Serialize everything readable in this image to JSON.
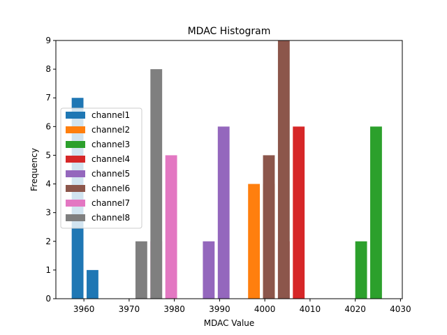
{
  "chart_data": {
    "type": "bar",
    "title": "MDAC Histogram",
    "xlabel": "MDAC Value",
    "ylabel": "Frequency",
    "xlim": [
      3953.8,
      4030.4
    ],
    "ylim": [
      0,
      9
    ],
    "xticks": [
      3960,
      3970,
      3980,
      3990,
      4000,
      4010,
      4020,
      4030
    ],
    "yticks": [
      0,
      1,
      2,
      3,
      4,
      5,
      6,
      7,
      8,
      9
    ],
    "bar_width": 2.6,
    "legend_position": "center-left",
    "series": [
      {
        "name": "channel1",
        "color": "#1f77b4",
        "bars": [
          {
            "x": 3958.6,
            "value": 7
          },
          {
            "x": 3961.9,
            "value": 1
          }
        ]
      },
      {
        "name": "channel2",
        "color": "#ff7f0e",
        "bars": [
          {
            "x": 3997.6,
            "value": 4
          },
          {
            "x": 4000.9,
            "value": 4
          }
        ]
      },
      {
        "name": "channel3",
        "color": "#2ca02c",
        "bars": [
          {
            "x": 4021.3,
            "value": 2
          },
          {
            "x": 4024.6,
            "value": 6
          }
        ]
      },
      {
        "name": "channel4",
        "color": "#d62728",
        "bars": [
          {
            "x": 4004.2,
            "value": 2
          },
          {
            "x": 4007.5,
            "value": 6
          }
        ]
      },
      {
        "name": "channel5",
        "color": "#9467bd",
        "bars": [
          {
            "x": 3987.6,
            "value": 2
          },
          {
            "x": 3990.9,
            "value": 6
          }
        ]
      },
      {
        "name": "channel6",
        "color": "#8c564b",
        "bars": [
          {
            "x": 4000.9,
            "value": 5
          },
          {
            "x": 4004.2,
            "value": 9
          }
        ]
      },
      {
        "name": "channel7",
        "color": "#e377c2",
        "bars": [
          {
            "x": 3976.0,
            "value": 2
          },
          {
            "x": 3979.3,
            "value": 5
          }
        ]
      },
      {
        "name": "channel8",
        "color": "#7f7f7f",
        "bars": [
          {
            "x": 3972.7,
            "value": 2
          },
          {
            "x": 3976.0,
            "value": 8
          }
        ]
      }
    ]
  }
}
